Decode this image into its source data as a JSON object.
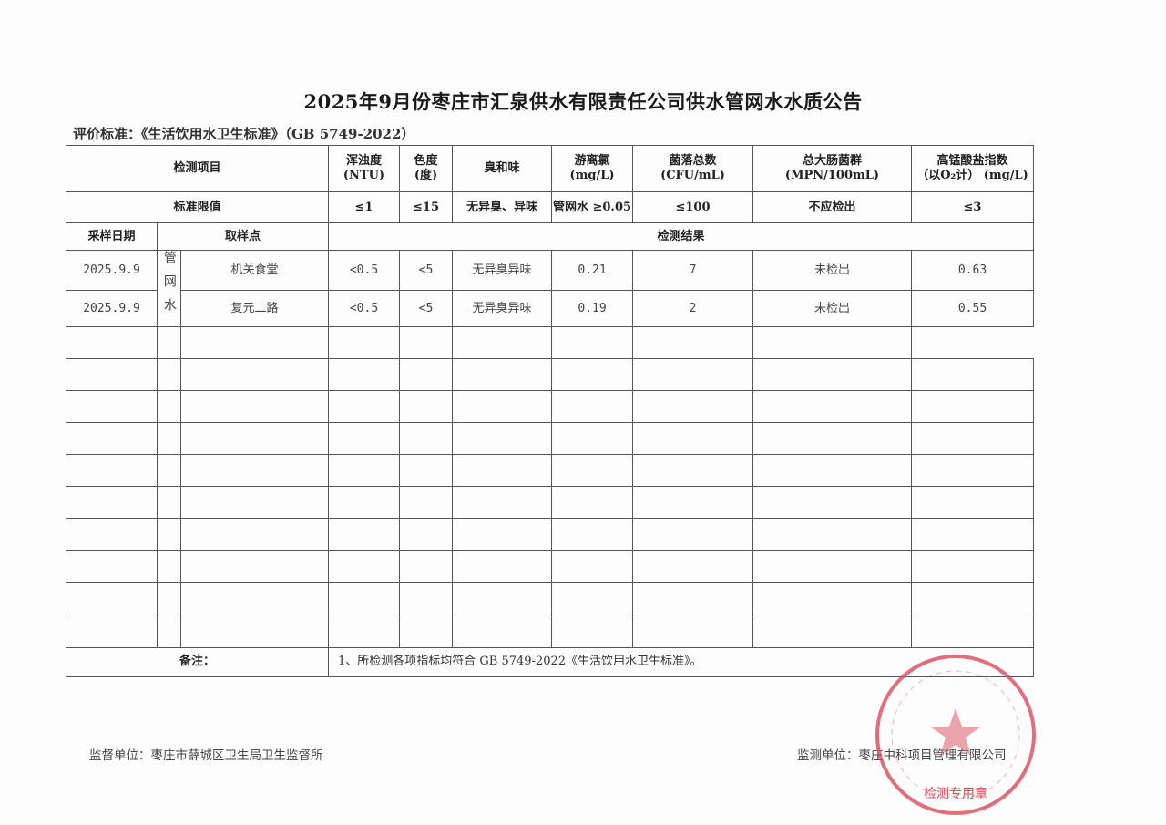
{
  "title": "2025年9月份枣庄市汇泉供水有限责任公司供水管网水水质公告",
  "standard": "评价标准：《生活饮用水卫生标准》（GB 5749-2022）",
  "header": {
    "item": "检测项目",
    "cols": [
      {
        "name": "浑浊度",
        "unit": "(NTU)",
        "limit": "≤1"
      },
      {
        "name": "色度",
        "unit": "(度)",
        "limit": "≤15"
      },
      {
        "name": "臭和味",
        "unit": "",
        "limit": "无异臭、异味"
      },
      {
        "name": "游离氯",
        "unit": "(mg/L)",
        "limit": "管网水 ≥0.05"
      },
      {
        "name": "菌落总数",
        "unit": "(CFU/mL)",
        "limit": "≤100"
      },
      {
        "name": "总大肠菌群",
        "unit": "(MPN/100mL)",
        "limit": "不应检出"
      },
      {
        "name": "高锰酸盐指数",
        "unit": "（以O₂计） (mg/L)",
        "limit": "≤3"
      }
    ],
    "limit_label": "标准限值",
    "date_label": "采样日期",
    "point_label": "取样点",
    "result_label": "检测结果"
  },
  "water_type": "管网水",
  "rows": [
    {
      "date": "2025.9.9",
      "point": "机关食堂",
      "values": [
        "<0.5",
        "<5",
        "无异臭异味",
        "0.21",
        "7",
        "未检出",
        "0.63"
      ]
    },
    {
      "date": "2025.9.9",
      "point": "复元二路",
      "values": [
        "<0.5",
        "<5",
        "无异臭异味",
        "0.19",
        "2",
        "未检出",
        "0.55"
      ]
    }
  ],
  "remark_label": "备注：",
  "remark": "1、所检测各项指标均符合 GB 5749-2022《生活饮用水卫生标准》。",
  "supervisor": "监督单位：枣庄市薛城区卫生局卫生监督所",
  "monitor": "监测单位：枣庄中科项目管理有限公司",
  "stamp_text": "枣庄中科项目管理有限公司 检测专用章",
  "stamp_color": "#d94a5a"
}
